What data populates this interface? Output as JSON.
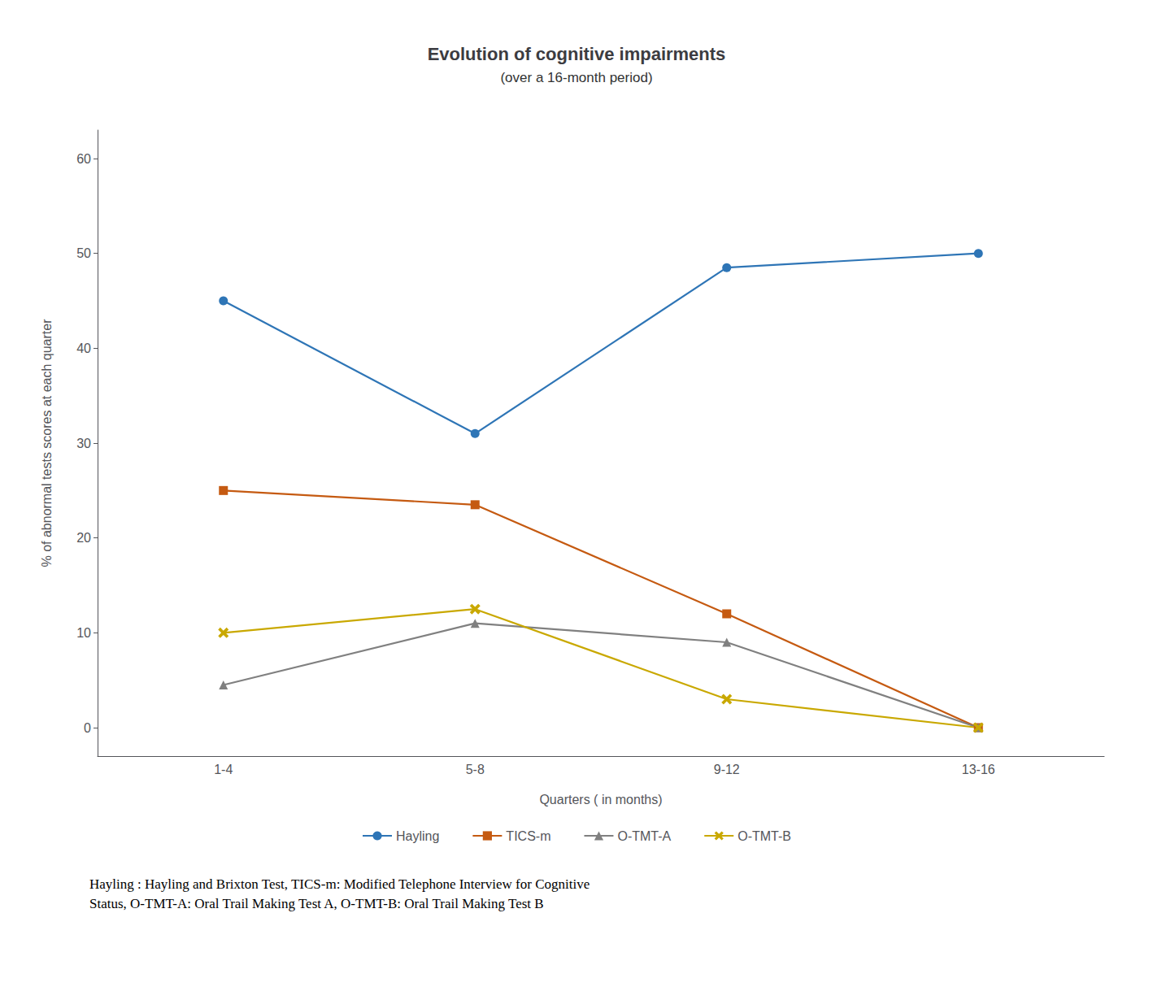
{
  "chart_data": {
    "type": "line",
    "title": "Evolution of cognitive impairments",
    "subtitle": "(over a 16-month period)",
    "xlabel": "Quarters ( in months)",
    "ylabel": "% of abnormal tests scores at each quarter",
    "categories": [
      "1-4",
      "5-8",
      "9-12",
      "13-16"
    ],
    "series": [
      {
        "name": "Hayling",
        "values": [
          45,
          31,
          48.5,
          50
        ],
        "color": "#2e75b6",
        "marker": "circle"
      },
      {
        "name": "TICS-m",
        "values": [
          25,
          23.5,
          12,
          0
        ],
        "color": "#c55a11",
        "marker": "square"
      },
      {
        "name": "O-TMT-A",
        "values": [
          4.5,
          11,
          9,
          0
        ],
        "color": "#808080",
        "marker": "triangle"
      },
      {
        "name": "O-TMT-B",
        "values": [
          10,
          12.5,
          3,
          0
        ],
        "color": "#c9a800",
        "marker": "x"
      }
    ],
    "ylim": [
      -3,
      63
    ],
    "yticks": [
      0,
      10,
      20,
      30,
      40,
      50,
      60
    ],
    "grid": false,
    "legend": "bottom",
    "caption": "Hayling : Hayling and Brixton Test, TICS-m: Modified Telephone Interview for Cognitive\nStatus, O-TMT-A: Oral Trail Making Test A, O-TMT-B: Oral Trail Making Test B"
  }
}
